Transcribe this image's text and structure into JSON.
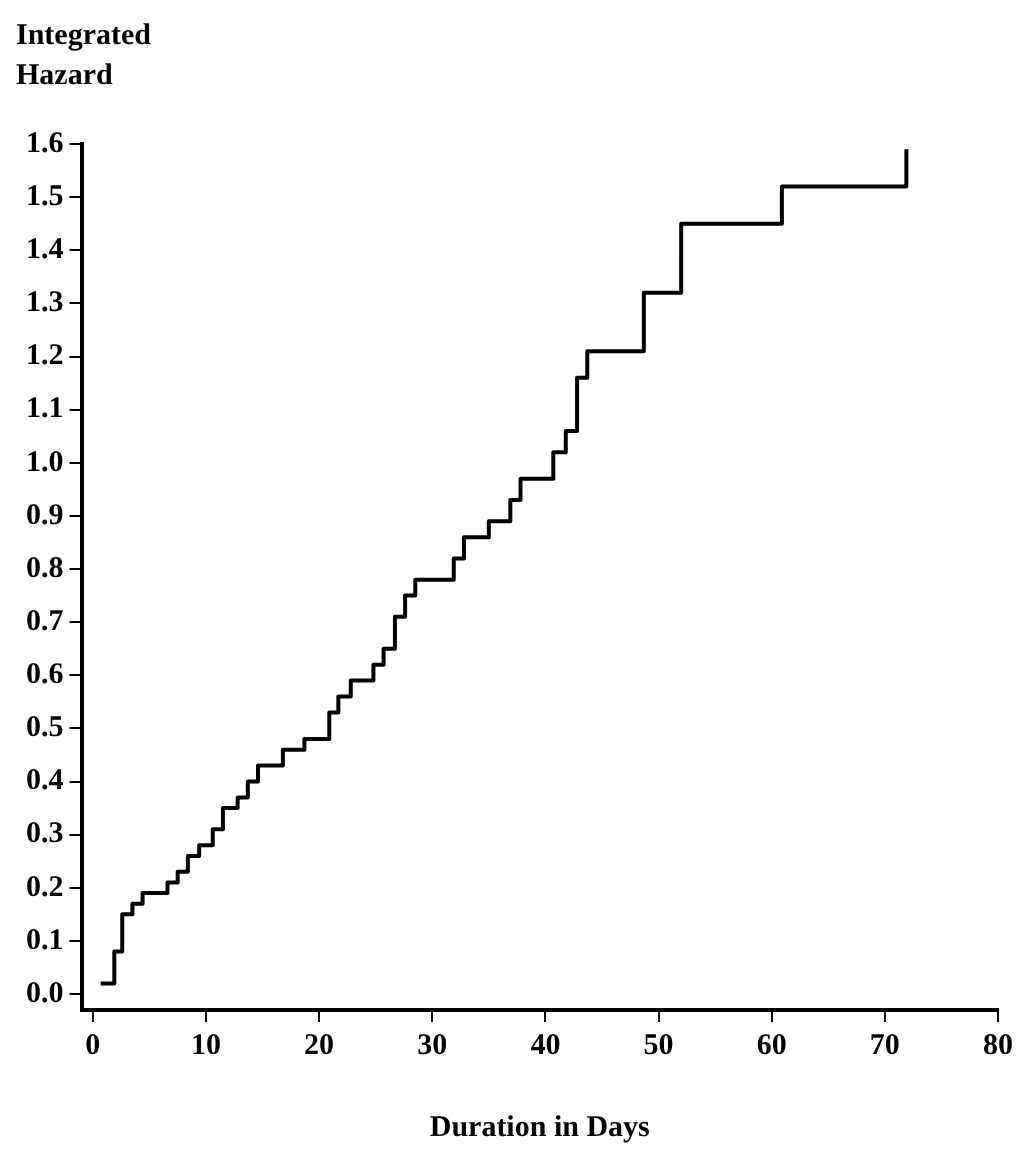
{
  "chart_data": {
    "type": "step",
    "xlabel": "Duration in Days",
    "ylabel": "Integrated Hazard",
    "xlim": [
      -1,
      80
    ],
    "xticks": [
      0,
      10,
      20,
      30,
      40,
      50,
      60,
      70,
      80
    ],
    "ylim": [
      -0.03,
      1.6
    ],
    "yticks": [
      {
        "value": 0,
        "label": "0.0"
      },
      0.1,
      0.2,
      0.3,
      0.4,
      0.5,
      0.6,
      0.7,
      0.8,
      0.9,
      {
        "value": 1,
        "label": "1.0"
      },
      1.1,
      1.2,
      1.3,
      1.4,
      1.5,
      1.6
    ],
    "grid": false,
    "legend": false,
    "series": [
      {
        "color": "#000000",
        "x": [
          0.7,
          1.9,
          2.6,
          3.5,
          4.4,
          6.6,
          7.5,
          8.4,
          9.4,
          10.6,
          11.5,
          12.8,
          13.7,
          14.6,
          16.8,
          18.7,
          20.9,
          21.7,
          22.8,
          24.8,
          25.7,
          26.7,
          27.6,
          28.5,
          31.9,
          32.8,
          35,
          36.9,
          37.8,
          40.7,
          41.8,
          42.8,
          43.7,
          48.7,
          52,
          60.9,
          71.9
        ],
        "values": [
          0.02,
          0.08,
          0.15,
          0.17,
          0.19,
          0.21,
          0.23,
          0.26,
          0.28,
          0.31,
          0.35,
          0.37,
          0.4,
          0.43,
          0.46,
          0.48,
          0.53,
          0.56,
          0.59,
          0.62,
          0.65,
          0.71,
          0.75,
          0.78,
          0.82,
          0.86,
          0.89,
          0.93,
          0.97,
          1.02,
          1.06,
          1.16,
          1.21,
          1.32,
          1.45,
          1.52,
          1.59
        ]
      }
    ]
  }
}
